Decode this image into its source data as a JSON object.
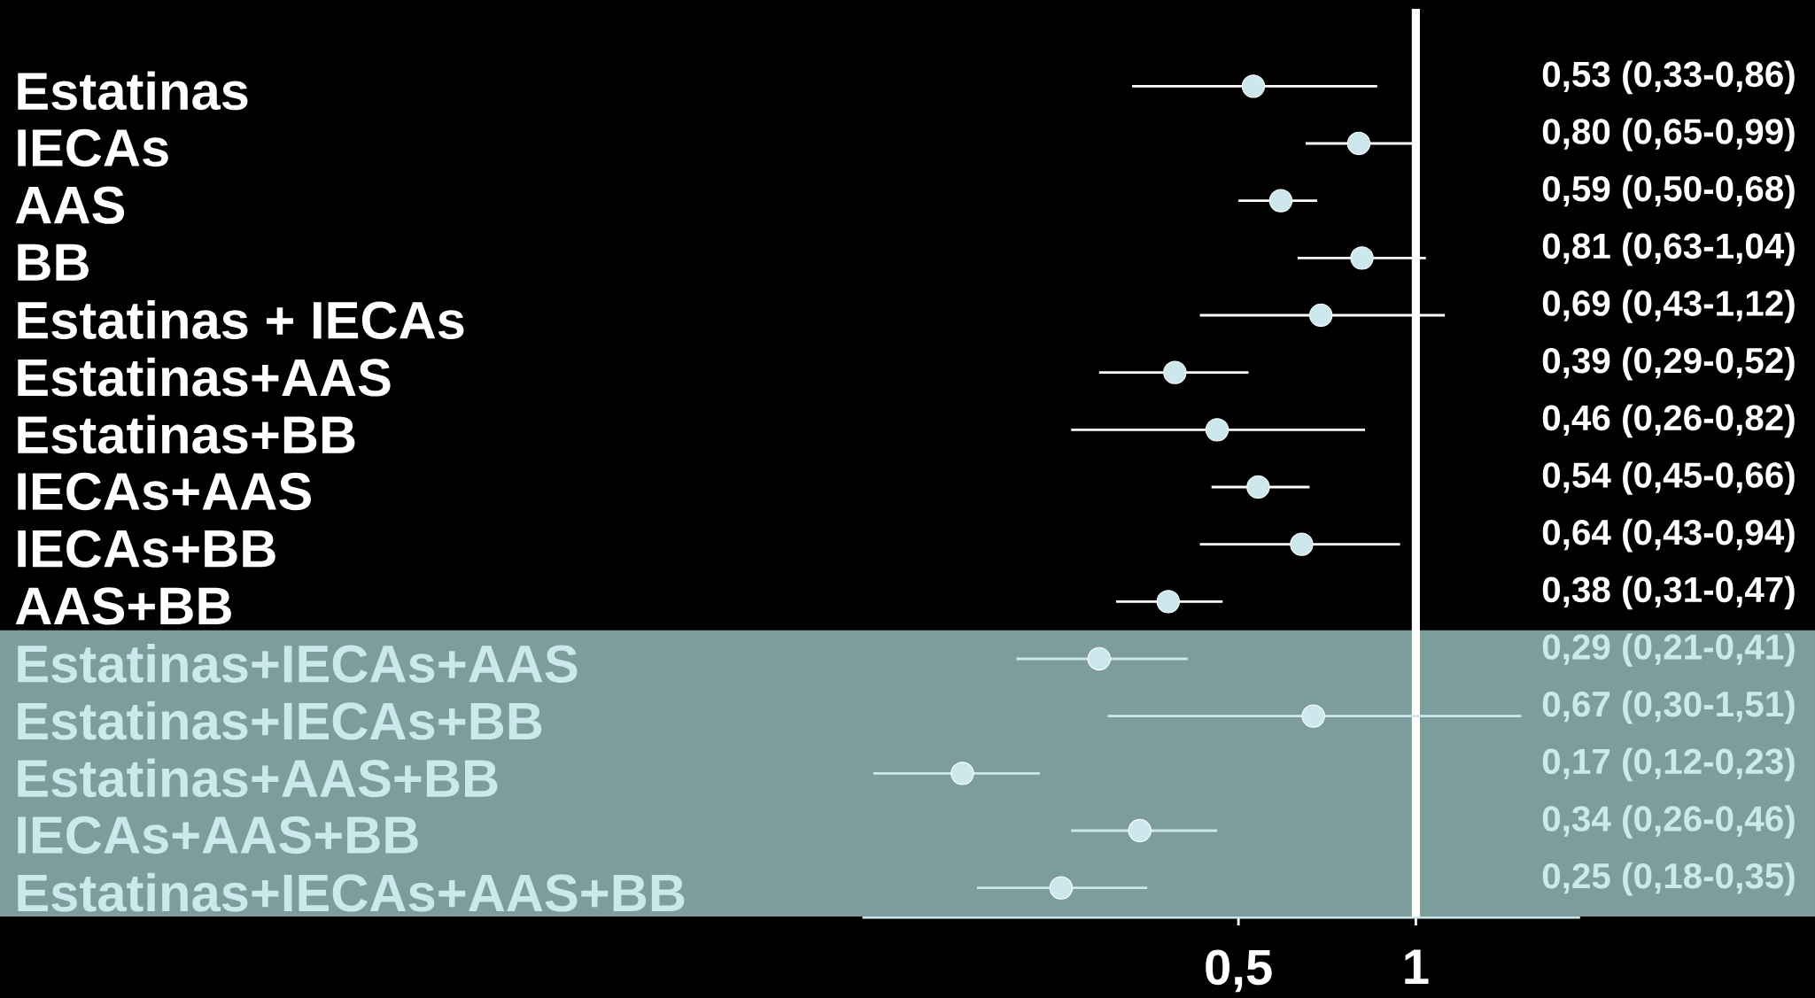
{
  "chart_data": {
    "type": "scatter",
    "orientation": "horizontal",
    "categories": [
      "Estatinas",
      "IECAs",
      "AAS",
      "BB",
      "Estatinas + IECAs",
      "Estatinas+AAS",
      "Estatinas+BB",
      "IECAs+AAS",
      "IECAs+BB",
      "AAS+BB",
      "Estatinas+IECAs+AAS",
      "Estatinas+IECAs+BB",
      "Estatinas+AAS+BB",
      "IECAs+AAS+BB",
      "Estatinas+IECAs+AAS+BB"
    ],
    "series": [
      {
        "color": "#cde8ec",
        "values": [
          0.53,
          0.8,
          0.59,
          0.81,
          0.69,
          0.39,
          0.46,
          0.54,
          0.64,
          0.38,
          0.29,
          0.67,
          0.17,
          0.34,
          0.25
        ],
        "errors": [
          [
            0.33,
            0.86
          ],
          [
            0.65,
            0.99
          ],
          [
            0.5,
            0.68
          ],
          [
            0.63,
            1.04
          ],
          [
            0.43,
            1.12
          ],
          [
            0.29,
            0.52
          ],
          [
            0.26,
            0.82
          ],
          [
            0.45,
            0.66
          ],
          [
            0.43,
            0.94
          ],
          [
            0.31,
            0.47
          ],
          [
            0.21,
            0.41
          ],
          [
            0.3,
            1.51
          ],
          [
            0.12,
            0.23
          ],
          [
            0.26,
            0.46
          ],
          [
            0.18,
            0.35
          ]
        ],
        "value_labels": [
          "0,53 (0,33-0,86)",
          "0,80 (0,65-0,99)",
          "0,59 (0,50-0,68)",
          "0,81 (0,63-1,04)",
          "0,69 (0,43-1,12)",
          "0,39 (0,29-0,52)",
          "0,46 (0,26-0,82)",
          "0,54 (0,45-0,66)",
          "0,64 (0,43-0,94)",
          "0,38 (0,31-0,47)",
          "0,29 (0,21-0,41)",
          "0,67 (0,30-1,51)",
          "0,17 (0,12-0,23)",
          "0,34 (0,26-0,46)",
          "0,25 (0,18-0,35)"
        ]
      }
    ],
    "log": "x",
    "xlim": [
      0.115,
      1.9
    ],
    "xticks": [
      {
        "value": 0.5,
        "label": "0,5"
      },
      {
        "value": 1,
        "label": "1"
      }
    ],
    "grid": false,
    "legend": false,
    "ref_lines": [
      {
        "axis": "x",
        "value": 1,
        "color": "#ffffff"
      }
    ],
    "bands": [
      {
        "axis": "y",
        "from": "Estatinas+IECAs+AAS",
        "to": "Estatinas+IECAs+AAS+BB",
        "color": "#7d9c9c"
      }
    ]
  }
}
